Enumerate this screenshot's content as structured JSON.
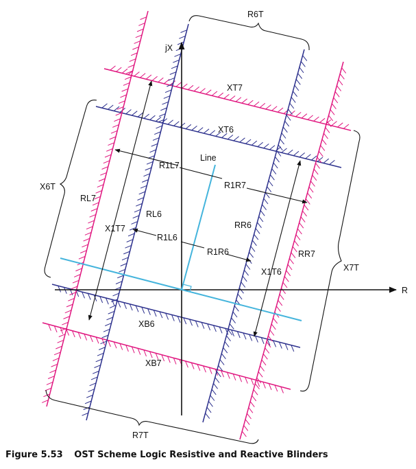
{
  "figure": {
    "number": "Figure 5.53",
    "title": "OST Scheme Logic Resistive and Reactive Blinders"
  },
  "axes": {
    "x_label": "R",
    "y_label": "jX"
  },
  "colors": {
    "outer_blinders": "#e0147e",
    "inner_blinders": "#2b2f8c",
    "line": "#44b4dc",
    "axis": "#111111"
  },
  "line_label": "Line",
  "blinders": {
    "outer_top": "XT7",
    "inner_top": "XT6",
    "inner_bottom": "XB6",
    "outer_bottom": "XB7",
    "outer_left": "RL7",
    "inner_left": "RL6",
    "inner_right": "RR6",
    "outer_right": "RR7"
  },
  "dimensions": {
    "x1t7": "X1T7",
    "x1t6": "X1T6",
    "r1l7": "R1L7",
    "r1r7": "R1R7",
    "r1l6": "R1L6",
    "r1r6": "R1R6"
  },
  "brackets": {
    "r6t": "R6T",
    "r7t": "R7T",
    "x6t": "X6T",
    "x7t": "X7T"
  }
}
